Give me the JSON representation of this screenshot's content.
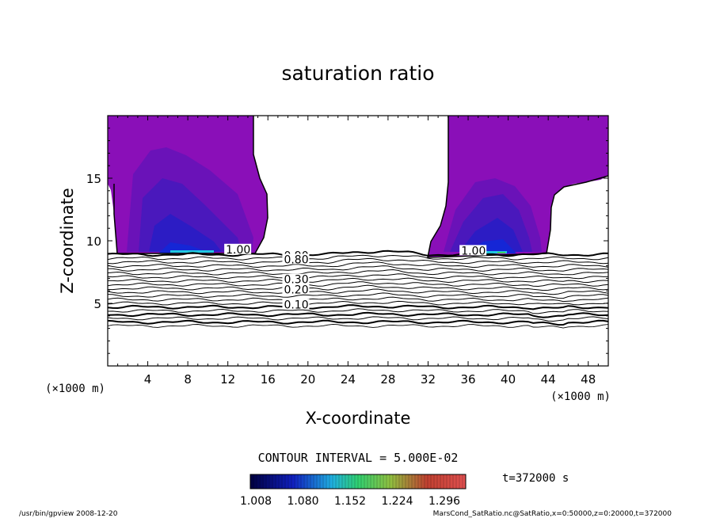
{
  "chart_data": {
    "type": "contour",
    "title": "saturation ratio",
    "xlabel": "X-coordinate",
    "ylabel": "Z-coordinate",
    "x_unit": "(×1000 m)",
    "y_unit": "(×1000 m)",
    "xlim": [
      0,
      50
    ],
    "ylim": [
      0,
      20
    ],
    "x_ticks": [
      4,
      8,
      12,
      16,
      20,
      24,
      28,
      32,
      36,
      40,
      44,
      48
    ],
    "y_ticks": [
      5,
      10,
      15
    ],
    "contour_interval_text": "CONTOUR INTERVAL = 5.000E-02",
    "contour_labels": [
      {
        "text": "1.00",
        "x": 11.8,
        "z": 9.0
      },
      {
        "text": "0.90",
        "x": 17.6,
        "z": 8.5
      },
      {
        "text": "0.80",
        "x": 17.6,
        "z": 8.2
      },
      {
        "text": "0.30",
        "x": 17.6,
        "z": 6.6
      },
      {
        "text": "0.20",
        "x": 17.6,
        "z": 5.8
      },
      {
        "text": "0.10",
        "x": 17.6,
        "z": 4.6
      },
      {
        "text": "1.00",
        "x": 35.3,
        "z": 8.9
      }
    ],
    "colorbar": {
      "labels": [
        "1.008",
        "1.080",
        "1.152",
        "1.224",
        "1.296"
      ]
    },
    "time_label": "t=372000 s",
    "colors": {
      "supersat_fill": "#8a0fb8",
      "deep_blue": "#1a20c8",
      "cyan": "#20c8e0",
      "green": "#40d060"
    }
  },
  "footer": {
    "left": "/usr/bin/gpview   2008-12-20",
    "right": "MarsCond_SatRatio.nc@SatRatio,x=0:50000,z=0:20000,t=372000"
  }
}
